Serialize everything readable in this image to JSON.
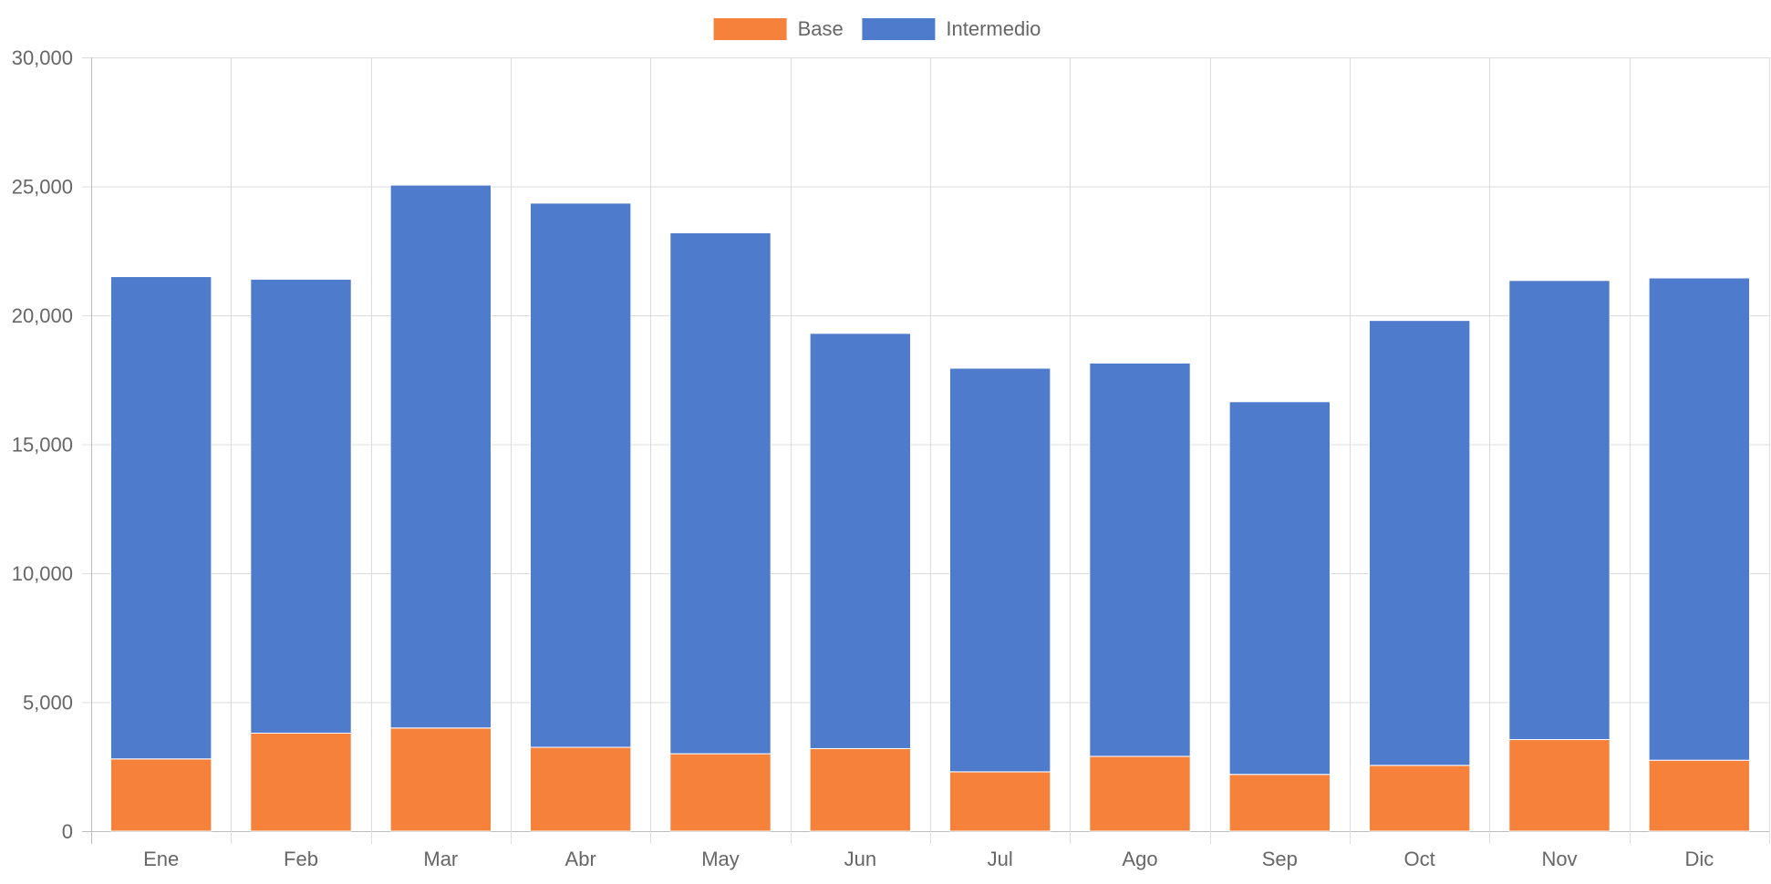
{
  "chart_data": {
    "type": "bar",
    "stacked": true,
    "categories": [
      "Ene",
      "Feb",
      "Mar",
      "Abr",
      "May",
      "Jun",
      "Jul",
      "Ago",
      "Sep",
      "Oct",
      "Nov",
      "Dic"
    ],
    "series": [
      {
        "name": "Base",
        "color": "#f5813a",
        "values": [
          2800,
          3800,
          4000,
          3250,
          3000,
          3200,
          2300,
          2900,
          2200,
          2550,
          3550,
          2750
        ]
      },
      {
        "name": "Intermedio",
        "color": "#4f7bcc",
        "values": [
          18700,
          17600,
          21050,
          21100,
          20200,
          16100,
          15650,
          15250,
          14450,
          17250,
          17800,
          18700
        ]
      }
    ],
    "ylim": [
      0,
      30000
    ],
    "yticks": [
      0,
      5000,
      10000,
      15000,
      20000,
      25000,
      30000
    ],
    "ytick_labels": [
      "0",
      "5,000",
      "10,000",
      "15,000",
      "20,000",
      "25,000",
      "30,000"
    ],
    "grid": true,
    "legend_position": "top-center",
    "title": "",
    "xlabel": "",
    "ylabel": ""
  }
}
